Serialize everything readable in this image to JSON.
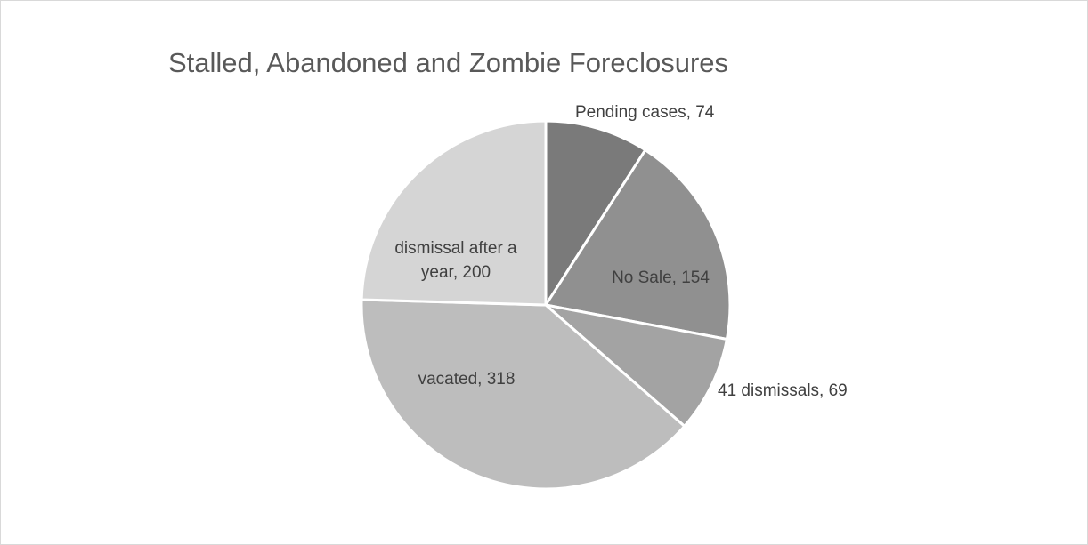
{
  "chart_data": {
    "type": "pie",
    "title": "Stalled, Abandoned and Zombie Foreclosures",
    "slices": [
      {
        "label": "Pending cases",
        "value": 74,
        "color": "#7a7a7a",
        "data_label": [
          "Pending cases, 74"
        ],
        "label_position": "outside"
      },
      {
        "label": "No Sale",
        "value": 154,
        "color": "#909090",
        "data_label": [
          "No Sale, 154"
        ],
        "label_position": "inside"
      },
      {
        "label": "41 dismissals",
        "value": 69,
        "color": "#a3a3a3",
        "data_label": [
          "41 dismissals, 69"
        ],
        "label_position": "outside"
      },
      {
        "label": "vacated",
        "value": 318,
        "color": "#bdbdbd",
        "data_label": [
          "vacated, 318"
        ],
        "label_position": "inside"
      },
      {
        "label": "dismissal after a year",
        "value": 200,
        "color": "#d5d5d5",
        "data_label": [
          "dismissal after a",
          "year, 200"
        ],
        "label_position": "inside"
      }
    ],
    "start_angle": "12 o'clock",
    "direction": "clockwise",
    "legend": "none"
  }
}
